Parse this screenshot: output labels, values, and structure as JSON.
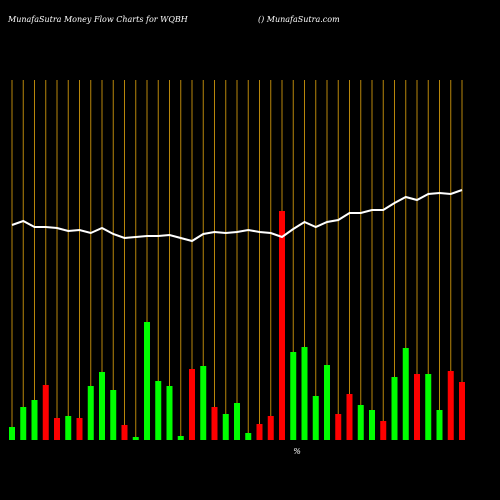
{
  "chart_data": {
    "type": "bar",
    "title": "MunafaSutra  Money Flow  Charts for WQBH",
    "subtitle": "() MunafaSutra.com",
    "annotation": "%",
    "ylim": [
      0,
      360
    ],
    "values": [
      13,
      33,
      40,
      55,
      22,
      24,
      22,
      54,
      68,
      50,
      15,
      3,
      118,
      59,
      54,
      4,
      71,
      74,
      33,
      26,
      37,
      7,
      16,
      24,
      229,
      88,
      93,
      44,
      75,
      26,
      46,
      35,
      30,
      19,
      63,
      92,
      66,
      66,
      30,
      69,
      58
    ],
    "colors": [
      "#00ff00",
      "#00ff00",
      "#00ff00",
      "#ff0000",
      "#ff0000",
      "#00ff00",
      "#ff0000",
      "#00ff00",
      "#00ff00",
      "#00ff00",
      "#ff0000",
      "#00ff00",
      "#00ff00",
      "#00ff00",
      "#00ff00",
      "#00ff00",
      "#ff0000",
      "#00ff00",
      "#ff0000",
      "#00ff00",
      "#00ff00",
      "#00ff00",
      "#ff0000",
      "#ff0000",
      "#ff0000",
      "#00ff00",
      "#00ff00",
      "#00ff00",
      "#00ff00",
      "#ff0000",
      "#ff0000",
      "#00ff00",
      "#00ff00",
      "#ff0000",
      "#00ff00",
      "#00ff00",
      "#ff0000",
      "#00ff00",
      "#00ff00",
      "#ff0000",
      "#ff0000"
    ],
    "line_values": [
      215,
      219,
      213,
      213,
      212,
      209,
      210,
      207,
      212,
      206,
      202,
      203,
      204,
      204,
      205,
      202,
      199,
      206,
      208,
      207,
      208,
      210,
      208,
      207,
      203,
      211,
      218,
      213,
      218,
      220,
      227,
      227,
      230,
      230,
      237,
      243,
      240,
      246,
      247,
      246,
      250
    ],
    "line_color": "#ffffff",
    "grid_color": "#b8860b"
  }
}
